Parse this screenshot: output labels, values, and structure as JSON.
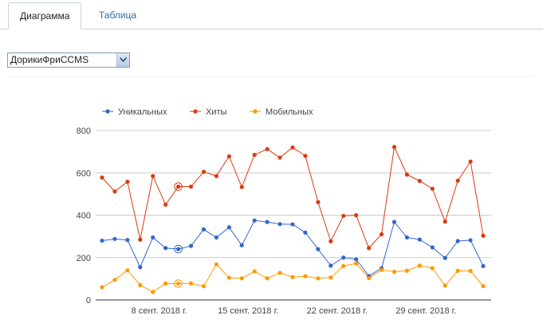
{
  "tabs": [
    {
      "label": "Диаграмма",
      "active": true
    },
    {
      "label": "Таблица",
      "active": false
    }
  ],
  "site_select": {
    "value": "ДорикиФриCCMS"
  },
  "chart_data": {
    "type": "line",
    "title": "",
    "xlabel": "",
    "ylabel": "",
    "ylim": [
      0,
      800
    ],
    "yticks": [
      0,
      200,
      400,
      600,
      800
    ],
    "grid": true,
    "legend_position": "top-left",
    "x_tick_labels": [
      {
        "index": 4.5,
        "label": "8 сент. 2018 г."
      },
      {
        "index": 11.5,
        "label": "15 сент. 2018 г."
      },
      {
        "index": 18.5,
        "label": "22 сент. 2018 г."
      },
      {
        "index": 25.5,
        "label": "29 сент. 2018 г."
      }
    ],
    "highlight_index": 6,
    "series": [
      {
        "name": "Уникальных",
        "color": "#3366cc",
        "values": [
          280,
          288,
          283,
          155,
          295,
          245,
          240,
          255,
          333,
          295,
          343,
          258,
          375,
          368,
          358,
          357,
          318,
          240,
          162,
          200,
          192,
          113,
          150,
          368,
          295,
          285,
          248,
          198,
          278,
          282,
          160
        ]
      },
      {
        "name": "Хиты",
        "color": "#dc3912",
        "values": [
          578,
          512,
          558,
          285,
          585,
          450,
          535,
          535,
          605,
          585,
          678,
          533,
          685,
          712,
          672,
          720,
          680,
          462,
          277,
          397,
          400,
          245,
          310,
          722,
          592,
          562,
          525,
          370,
          563,
          653,
          303
        ]
      },
      {
        "name": "Мобильных",
        "color": "#ff9900",
        "values": [
          60,
          95,
          140,
          70,
          38,
          78,
          77,
          78,
          65,
          168,
          105,
          102,
          135,
          102,
          128,
          108,
          112,
          102,
          106,
          160,
          172,
          103,
          142,
          133,
          138,
          162,
          150,
          68,
          138,
          137,
          65
        ]
      }
    ]
  }
}
